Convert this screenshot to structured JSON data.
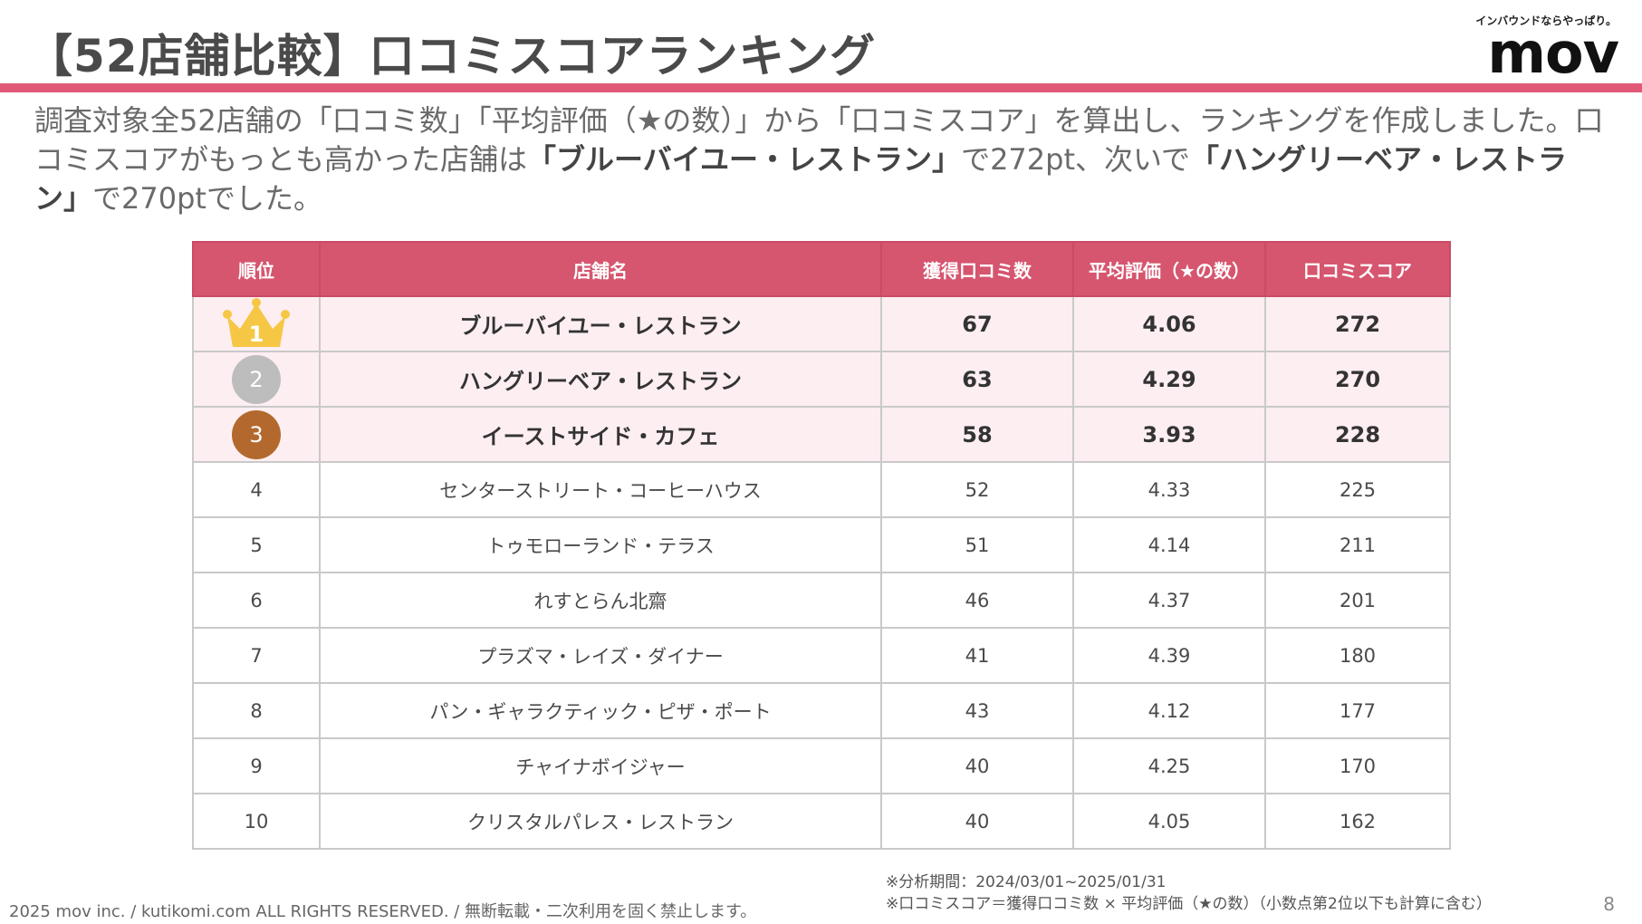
{
  "header": {
    "title": "【52店舗比較】口コミスコアランキング",
    "brand_tagline": "インバウンドならやっぱり。",
    "brand_logo": "mov"
  },
  "lead": {
    "part1": "調査対象全52店舗の「口コミ数」「平均評価（★の数）」から「口コミスコア」を算出し、ランキングを作成しました。口コミスコアがもっとも高かった店舗は",
    "highlight1": "「ブルーバイユー・レストラン」",
    "part2": "で272pt、次いで",
    "highlight2": "「ハングリーベア・レストラン」",
    "part3": "で270ptでした。"
  },
  "table": {
    "headers": [
      "順位",
      "店舗名",
      "獲得口コミ数",
      "平均評価（★の数）",
      "口コミスコア"
    ],
    "rows": [
      {
        "rank": "1",
        "name": "ブルーバイユー・レストラン",
        "reviews": "67",
        "rating": "4.06",
        "score": "272"
      },
      {
        "rank": "2",
        "name": "ハングリーベア・レストラン",
        "reviews": "63",
        "rating": "4.29",
        "score": "270"
      },
      {
        "rank": "3",
        "name": "イーストサイド・カフェ",
        "reviews": "58",
        "rating": "3.93",
        "score": "228"
      },
      {
        "rank": "4",
        "name": "センターストリート・コーヒーハウス",
        "reviews": "52",
        "rating": "4.33",
        "score": "225"
      },
      {
        "rank": "5",
        "name": "トゥモローランド・テラス",
        "reviews": "51",
        "rating": "4.14",
        "score": "211"
      },
      {
        "rank": "6",
        "name": "れすとらん北齋",
        "reviews": "46",
        "rating": "4.37",
        "score": "201"
      },
      {
        "rank": "7",
        "name": "プラズマ・レイズ・ダイナー",
        "reviews": "41",
        "rating": "4.39",
        "score": "180"
      },
      {
        "rank": "8",
        "name": "パン・ギャラクティック・ピザ・ポート",
        "reviews": "43",
        "rating": "4.12",
        "score": "177"
      },
      {
        "rank": "9",
        "name": "チャイナボイジャー",
        "reviews": "40",
        "rating": "4.25",
        "score": "170"
      },
      {
        "rank": "10",
        "name": "クリスタルパレス・レストラン",
        "reviews": "40",
        "rating": "4.05",
        "score": "162"
      }
    ]
  },
  "colors": {
    "accent": "#e05a78",
    "header_bg": "#d6556f",
    "top_row_bg": "#fdeef2",
    "gold": "#f6c744",
    "silver": "#bdbdbd",
    "bronze": "#b3692d"
  },
  "icons": {
    "rank1": "crown-icon",
    "rank2": "silver-medal-icon",
    "rank3": "bronze-medal-icon"
  },
  "notes": {
    "period": "※分析期間：2024/03/01~2025/01/31",
    "formula": "※口コミスコア＝獲得口コミ数 × 平均評価（★の数）（小数点第2位以下も計算に含む）"
  },
  "footer": {
    "copyright": "2025 mov inc. / kutikomi.com ALL RIGHTS RESERVED. / 無断転載・二次利用を固く禁止します。",
    "page_number": "8"
  }
}
